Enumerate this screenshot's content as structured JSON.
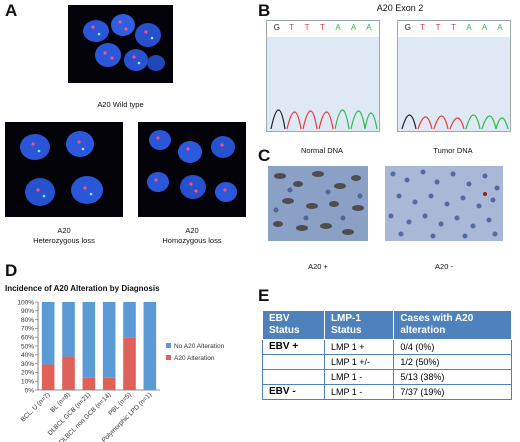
{
  "panels": {
    "A": "A",
    "B": "B",
    "C": "C",
    "D": "D",
    "E": "E"
  },
  "panel_a": {
    "wild_type_caption": "A20 Wild type",
    "het_caption_line1": "A20",
    "het_caption_line2": "Heterozygous loss",
    "hom_caption_line1": "A20",
    "hom_caption_line2": "Homozygous loss"
  },
  "panel_b": {
    "title": "A20 Exon 2",
    "normal_caption": "Normal DNA",
    "tumor_caption": "Tumor DNA",
    "bases": [
      "G",
      "T",
      "T",
      "T",
      "A",
      "A",
      "A"
    ],
    "base_colors": {
      "G": "#222222",
      "T": "#e8393c",
      "A": "#2db84a"
    }
  },
  "panel_c": {
    "pos_caption": "A20 +",
    "neg_caption": "A20 -"
  },
  "chart_data": {
    "type": "bar",
    "stacked": true,
    "title": "Incidence of A20 Alteration by Diagnosis",
    "categories": [
      "BCL, U (n=7)",
      "BL (n=8)",
      "DLBCL GCB (n=21)",
      "DLBCL non GCB (n=14)",
      "PBL (n=5)",
      "Polymorphic LPD (n=1)"
    ],
    "series": [
      {
        "name": "A20 Alteration",
        "color": "#e0615a",
        "values": [
          29,
          38,
          14,
          14,
          60,
          0
        ]
      },
      {
        "name": "No A20 Alteration",
        "color": "#5b9bd5",
        "values": [
          71,
          62,
          86,
          86,
          40,
          100
        ]
      }
    ],
    "yticks": [
      "0%",
      "10%",
      "20%",
      "30%",
      "40%",
      "50%",
      "60%",
      "70%",
      "80%",
      "90%",
      "100%"
    ],
    "ylim": [
      0,
      100
    ],
    "legend_position": "right"
  },
  "panel_e": {
    "headers": [
      "EBV Status",
      "LMP-1 Status",
      "Cases with A20 alteration"
    ],
    "rows": [
      {
        "ebv": "EBV +",
        "lmp": "LMP 1 +",
        "cases": "0/4 (0%)"
      },
      {
        "ebv": "",
        "lmp": "LMP 1 +/-",
        "cases": "1/2 (50%)"
      },
      {
        "ebv": "",
        "lmp": "LMP 1 -",
        "cases": "5/13 (38%)"
      },
      {
        "ebv": "EBV -",
        "lmp": "LMP 1 -",
        "cases": "7/37 (19%)"
      }
    ]
  }
}
